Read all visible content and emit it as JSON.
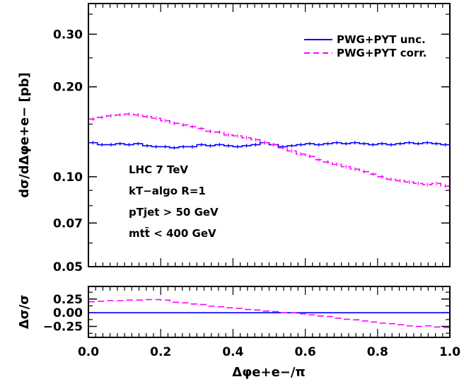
{
  "chart_data": [
    {
      "type": "line",
      "panel": "main",
      "ylabel": "dσ/dΔφe+e− [pb]",
      "yscale": "log",
      "xlim": [
        0.0,
        1.0
      ],
      "ylim": [
        0.05,
        0.38
      ],
      "yticks": [
        0.05,
        0.07,
        0.1,
        0.2,
        0.3
      ],
      "ytick_labels": [
        "0.05",
        "0.07",
        "0.10",
        "0.20",
        "0.30"
      ],
      "x_edges": [
        0.0,
        0.025,
        0.05,
        0.075,
        0.1,
        0.125,
        0.15,
        0.175,
        0.2,
        0.225,
        0.25,
        0.275,
        0.3,
        0.325,
        0.35,
        0.375,
        0.4,
        0.425,
        0.45,
        0.475,
        0.5,
        0.525,
        0.55,
        0.575,
        0.6,
        0.625,
        0.65,
        0.675,
        0.7,
        0.725,
        0.75,
        0.775,
        0.8,
        0.825,
        0.85,
        0.875,
        0.9,
        0.925,
        0.95,
        0.975,
        1.0
      ],
      "series": [
        {
          "name": "PWG+PYT unc.",
          "color": "#0000ff",
          "style": "solid",
          "values": [
            0.13,
            0.128,
            0.128,
            0.129,
            0.128,
            0.129,
            0.127,
            0.126,
            0.126,
            0.125,
            0.126,
            0.126,
            0.128,
            0.127,
            0.128,
            0.127,
            0.126,
            0.127,
            0.128,
            0.13,
            0.128,
            0.126,
            0.127,
            0.128,
            0.129,
            0.128,
            0.129,
            0.13,
            0.129,
            0.13,
            0.129,
            0.128,
            0.129,
            0.128,
            0.129,
            0.13,
            0.129,
            0.13,
            0.129,
            0.128
          ]
        },
        {
          "name": "PWG+PYT corr.",
          "color": "#ff00ff",
          "style": "dashed",
          "values": [
            0.156,
            0.158,
            0.16,
            0.161,
            0.162,
            0.161,
            0.159,
            0.157,
            0.154,
            0.151,
            0.149,
            0.147,
            0.145,
            0.142,
            0.141,
            0.138,
            0.137,
            0.135,
            0.133,
            0.13,
            0.128,
            0.125,
            0.122,
            0.119,
            0.117,
            0.114,
            0.112,
            0.11,
            0.108,
            0.106,
            0.104,
            0.102,
            0.1,
            0.098,
            0.097,
            0.096,
            0.095,
            0.094,
            0.095,
            0.093
          ]
        }
      ],
      "legend": [
        "PWG+PYT unc.",
        "PWG+PYT corr."
      ],
      "legend_position": "top-right",
      "annotations": [
        "LHC 7 TeV",
        "kT−algo R=1",
        "pTjet > 50 GeV",
        "mtt̄ < 400 GeV"
      ]
    },
    {
      "type": "line",
      "panel": "ratio",
      "xlabel": "Δφe+e−/π",
      "ylabel": "Δσ/σ",
      "xlim": [
        0.0,
        1.0
      ],
      "ylim": [
        -0.45,
        0.48
      ],
      "xticks": [
        0.0,
        0.2,
        0.4,
        0.6,
        0.8,
        1.0
      ],
      "xtick_labels": [
        "0.0",
        "0.2",
        "0.4",
        "0.6",
        "0.8",
        "1.0"
      ],
      "yticks": [
        -0.25,
        0.0,
        0.25
      ],
      "ytick_labels": [
        "−0.25",
        "0.00",
        "0.25"
      ],
      "x_edges": [
        0.0,
        0.025,
        0.05,
        0.075,
        0.1,
        0.125,
        0.15,
        0.175,
        0.2,
        0.225,
        0.25,
        0.275,
        0.3,
        0.325,
        0.35,
        0.375,
        0.4,
        0.425,
        0.45,
        0.475,
        0.5,
        0.525,
        0.55,
        0.575,
        0.6,
        0.625,
        0.65,
        0.675,
        0.7,
        0.725,
        0.75,
        0.775,
        0.8,
        0.825,
        0.85,
        0.875,
        0.9,
        0.925,
        0.95,
        0.975,
        1.0
      ],
      "series": [
        {
          "color": "#0000ff",
          "style": "solid",
          "values": [
            0,
            0,
            0,
            0,
            0,
            0,
            0,
            0,
            0,
            0,
            0,
            0,
            0,
            0,
            0,
            0,
            0,
            0,
            0,
            0,
            0,
            0,
            0,
            0,
            0,
            0,
            0,
            0,
            0,
            0,
            0,
            0,
            0,
            0,
            0,
            0,
            0,
            0,
            0,
            0
          ]
        },
        {
          "color": "#ff00ff",
          "style": "dashed",
          "values": [
            0.2,
            0.21,
            0.22,
            0.22,
            0.23,
            0.23,
            0.24,
            0.24,
            0.23,
            0.19,
            0.18,
            0.16,
            0.15,
            0.12,
            0.11,
            0.09,
            0.08,
            0.06,
            0.05,
            0.03,
            0.02,
            0.0,
            0.0,
            -0.02,
            -0.04,
            -0.06,
            -0.07,
            -0.1,
            -0.12,
            -0.13,
            -0.15,
            -0.17,
            -0.19,
            -0.2,
            -0.22,
            -0.24,
            -0.25,
            -0.24,
            -0.26,
            -0.27
          ]
        }
      ]
    }
  ]
}
